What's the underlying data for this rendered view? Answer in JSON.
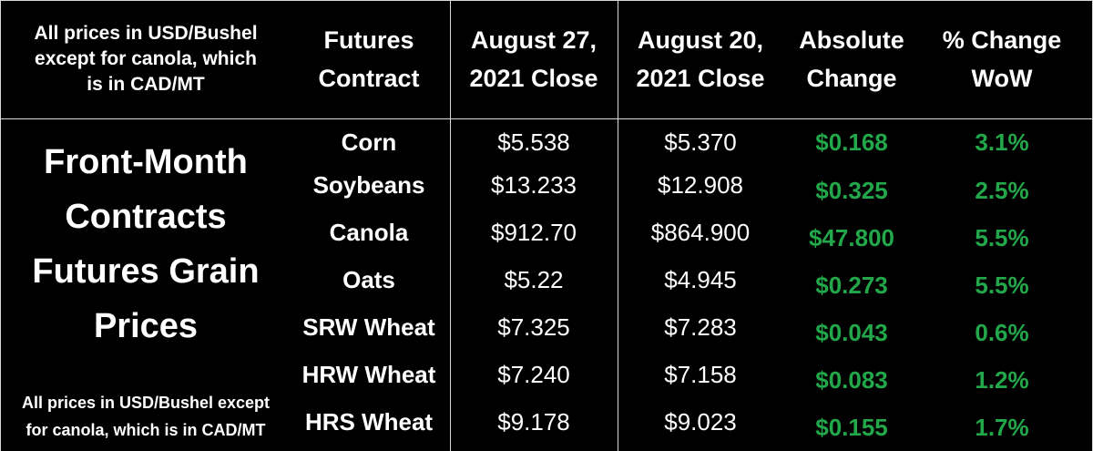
{
  "colors": {
    "background": "#000000",
    "text": "#ffffff",
    "positive": "#22a84a",
    "grid": "#d8d8d8"
  },
  "header_note": [
    "All prices in USD/Bushel",
    "except for canola, which",
    "is in CAD/MT"
  ],
  "headers": {
    "contract": [
      "Futures",
      "Contract"
    ],
    "current": [
      "August 27,",
      "2021 Close"
    ],
    "previous": [
      "August 20,",
      "2021 Close"
    ],
    "absolute": [
      "Absolute",
      "Change"
    ],
    "pct": [
      "% Change",
      "WoW"
    ]
  },
  "title": [
    "Front-Month",
    "Contracts",
    "Futures Grain",
    "Prices"
  ],
  "footnote": [
    "All prices in USD/Bushel except",
    "for canola, which is in CAD/MT"
  ],
  "rows": [
    {
      "name": "Corn",
      "current": "$5.538",
      "previous": "$5.370",
      "abs": "$0.168",
      "pct": "3.1%"
    },
    {
      "name": "Soybeans",
      "current": "$13.233",
      "previous": "$12.908",
      "abs": "$0.325",
      "pct": "2.5%"
    },
    {
      "name": "Canola",
      "current": "$912.70",
      "previous": "$864.900",
      "abs": "$47.800",
      "pct": "5.5%"
    },
    {
      "name": "Oats",
      "current": "$5.22",
      "previous": "$4.945",
      "abs": "$0.273",
      "pct": "5.5%"
    },
    {
      "name": "SRW Wheat",
      "current": "$7.325",
      "previous": "$7.283",
      "abs": "$0.043",
      "pct": "0.6%"
    },
    {
      "name": "HRW Wheat",
      "current": "$7.240",
      "previous": "$7.158",
      "abs": "$0.083",
      "pct": "1.2%"
    },
    {
      "name": "HRS Wheat",
      "current": "$9.178",
      "previous": "$9.023",
      "abs": "$0.155",
      "pct": "1.7%"
    }
  ]
}
